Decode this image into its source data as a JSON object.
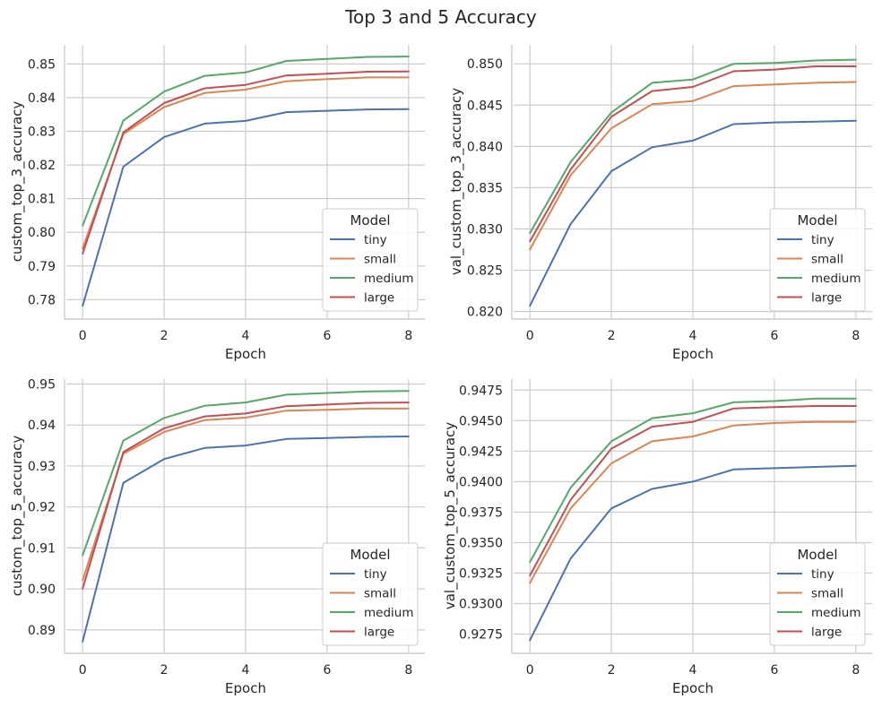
{
  "figure": {
    "title": "Top 3 and 5 Accuracy"
  },
  "colors": {
    "tiny": "#4c72b0",
    "small": "#dd8452",
    "medium": "#55a868",
    "large": "#c44e52"
  },
  "chart_data": [
    {
      "type": "line",
      "title": "",
      "xlabel": "Epoch",
      "ylabel": "custom_top_3_accuracy",
      "x": [
        0,
        1,
        2,
        3,
        4,
        5,
        6,
        7,
        8
      ],
      "xticks": [
        0,
        2,
        4,
        6,
        8
      ],
      "xlim": [
        -0.4,
        8.4
      ],
      "yticks": [
        0.78,
        0.79,
        0.8,
        0.81,
        0.82,
        0.83,
        0.84,
        0.85
      ],
      "ytick_labels": [
        "0.78",
        "0.79",
        "0.80",
        "0.81",
        "0.82",
        "0.83",
        "0.84",
        "0.85"
      ],
      "ylim": [
        0.7745,
        0.8557
      ],
      "grid": true,
      "legend": {
        "title": "Model",
        "placement": "lower right"
      },
      "series": [
        {
          "name": "tiny",
          "values": [
            0.7782,
            0.8195,
            0.8283,
            0.8323,
            0.8331,
            0.8357,
            0.8361,
            0.8365,
            0.8366
          ]
        },
        {
          "name": "small",
          "values": [
            0.7952,
            0.8292,
            0.8372,
            0.8414,
            0.8424,
            0.8449,
            0.8455,
            0.846,
            0.846
          ]
        },
        {
          "name": "medium",
          "values": [
            0.802,
            0.8332,
            0.8418,
            0.8465,
            0.8475,
            0.8509,
            0.8515,
            0.8521,
            0.8522
          ]
        },
        {
          "name": "large",
          "values": [
            0.7937,
            0.8297,
            0.8384,
            0.8428,
            0.8438,
            0.8466,
            0.8471,
            0.8477,
            0.8478
          ]
        }
      ]
    },
    {
      "type": "line",
      "title": "",
      "xlabel": "Epoch",
      "ylabel": "val_custom_top_3_accuracy",
      "x": [
        0,
        1,
        2,
        3,
        4,
        5,
        6,
        7,
        8
      ],
      "xticks": [
        0,
        2,
        4,
        6,
        8
      ],
      "xlim": [
        -0.4,
        8.4
      ],
      "yticks": [
        0.82,
        0.825,
        0.83,
        0.835,
        0.84,
        0.845,
        0.85
      ],
      "ytick_labels": [
        "0.820",
        "0.825",
        "0.830",
        "0.835",
        "0.840",
        "0.845",
        "0.850"
      ],
      "ylim": [
        0.8192,
        0.8523
      ],
      "grid": true,
      "legend": {
        "title": "Model",
        "placement": "lower right"
      },
      "series": [
        {
          "name": "tiny",
          "values": [
            0.8207,
            0.8306,
            0.837,
            0.8399,
            0.8407,
            0.8427,
            0.8429,
            0.843,
            0.8431
          ]
        },
        {
          "name": "small",
          "values": [
            0.8275,
            0.8365,
            0.8422,
            0.8451,
            0.8455,
            0.8473,
            0.8475,
            0.8477,
            0.8478
          ]
        },
        {
          "name": "medium",
          "values": [
            0.8295,
            0.8381,
            0.8441,
            0.8477,
            0.8481,
            0.85,
            0.8501,
            0.8504,
            0.8505
          ]
        },
        {
          "name": "large",
          "values": [
            0.8285,
            0.8372,
            0.8436,
            0.8467,
            0.8472,
            0.8491,
            0.8493,
            0.8497,
            0.8497
          ]
        }
      ]
    },
    {
      "type": "line",
      "title": "",
      "xlabel": "Epoch",
      "ylabel": "custom_top_5_accuracy",
      "x": [
        0,
        1,
        2,
        3,
        4,
        5,
        6,
        7,
        8
      ],
      "xticks": [
        0,
        2,
        4,
        6,
        8
      ],
      "xlim": [
        -0.4,
        8.4
      ],
      "yticks": [
        0.89,
        0.9,
        0.91,
        0.92,
        0.93,
        0.94,
        0.95
      ],
      "ytick_labels": [
        "0.89",
        "0.90",
        "0.91",
        "0.92",
        "0.93",
        "0.94",
        "0.95"
      ],
      "ylim": [
        0.8845,
        0.9512
      ],
      "grid": true,
      "legend": {
        "title": "Model",
        "placement": "lower right"
      },
      "series": [
        {
          "name": "tiny",
          "values": [
            0.8872,
            0.9259,
            0.9317,
            0.9344,
            0.935,
            0.9366,
            0.9368,
            0.9371,
            0.9372
          ]
        },
        {
          "name": "small",
          "values": [
            0.9021,
            0.933,
            0.9383,
            0.9412,
            0.9418,
            0.9435,
            0.9437,
            0.944,
            0.944
          ]
        },
        {
          "name": "medium",
          "values": [
            0.9082,
            0.9362,
            0.9417,
            0.9447,
            0.9455,
            0.9474,
            0.9478,
            0.9482,
            0.9483
          ]
        },
        {
          "name": "large",
          "values": [
            0.9001,
            0.9334,
            0.9392,
            0.9421,
            0.9428,
            0.9446,
            0.945,
            0.9454,
            0.9455
          ]
        }
      ]
    },
    {
      "type": "line",
      "title": "",
      "xlabel": "Epoch",
      "ylabel": "val_custom_top_5_accuracy",
      "x": [
        0,
        1,
        2,
        3,
        4,
        5,
        6,
        7,
        8
      ],
      "xticks": [
        0,
        2,
        4,
        6,
        8
      ],
      "xlim": [
        -0.4,
        8.4
      ],
      "yticks": [
        0.9275,
        0.93,
        0.9325,
        0.935,
        0.9375,
        0.94,
        0.9425,
        0.945,
        0.9475
      ],
      "ytick_labels": [
        "0.9275",
        "0.9300",
        "0.9325",
        "0.9350",
        "0.9375",
        "0.9400",
        "0.9425",
        "0.9450",
        "0.9475"
      ],
      "ylim": [
        0.926,
        0.9484
      ],
      "grid": true,
      "legend": {
        "title": "Model",
        "placement": "lower right"
      },
      "series": [
        {
          "name": "tiny",
          "values": [
            0.927,
            0.9337,
            0.9378,
            0.9394,
            0.94,
            0.941,
            0.9411,
            0.9412,
            0.9413
          ]
        },
        {
          "name": "small",
          "values": [
            0.9317,
            0.9378,
            0.9415,
            0.9433,
            0.9437,
            0.9446,
            0.9448,
            0.9449,
            0.9449
          ]
        },
        {
          "name": "medium",
          "values": [
            0.9334,
            0.9395,
            0.9433,
            0.9452,
            0.9456,
            0.9465,
            0.9466,
            0.9468,
            0.9468
          ]
        },
        {
          "name": "large",
          "values": [
            0.9323,
            0.9385,
            0.9427,
            0.9445,
            0.9449,
            0.946,
            0.9461,
            0.9462,
            0.9462
          ]
        }
      ]
    }
  ]
}
